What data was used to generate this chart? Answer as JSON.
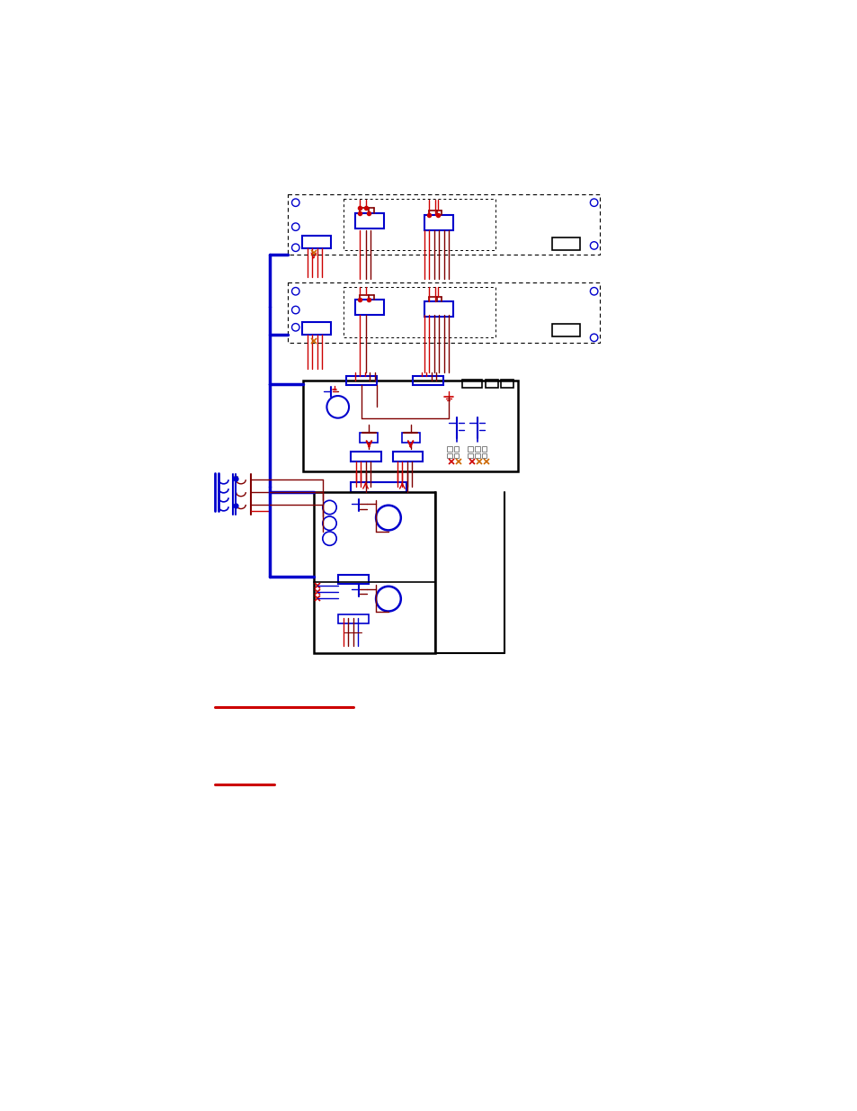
{
  "bg_color": "#ffffff",
  "BLACK": "#000000",
  "BLUE": "#0000cc",
  "RED": "#cc0000",
  "DKRED": "#800000",
  "GRAY": "#808080",
  "fig_width": 9.54,
  "fig_height": 12.35,
  "dpi": 100
}
